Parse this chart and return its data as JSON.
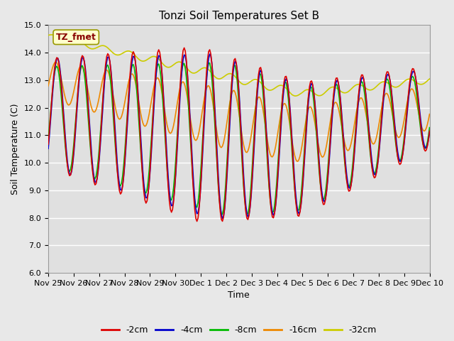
{
  "title": "Tonzi Soil Temperatures Set B",
  "xlabel": "Time",
  "ylabel": "Soil Temperature (C)",
  "ylim": [
    6.0,
    15.0
  ],
  "yticks": [
    6.0,
    7.0,
    8.0,
    9.0,
    10.0,
    11.0,
    12.0,
    13.0,
    14.0,
    15.0
  ],
  "xtick_labels": [
    "Nov 25",
    "Nov 26",
    "Nov 27",
    "Nov 28",
    "Nov 29",
    "Nov 30",
    "Dec 1",
    "Dec 2",
    "Dec 3",
    "Dec 4",
    "Dec 5",
    "Dec 6",
    "Dec 7",
    "Dec 8",
    "Dec 9",
    "Dec 10"
  ],
  "series_colors": {
    "-2cm": "#dd0000",
    "-4cm": "#0000cc",
    "-8cm": "#00bb00",
    "-16cm": "#ee8800",
    "-32cm": "#cccc00"
  },
  "annotation_text": "TZ_fmet",
  "annotation_color": "#880000",
  "annotation_bg": "#ffffcc",
  "annotation_edge": "#999900",
  "fig_facecolor": "#e8e8e8",
  "plot_facecolor": "#e0e0e0",
  "grid_color": "#ffffff",
  "title_fontsize": 11,
  "axis_fontsize": 9,
  "tick_fontsize": 8
}
